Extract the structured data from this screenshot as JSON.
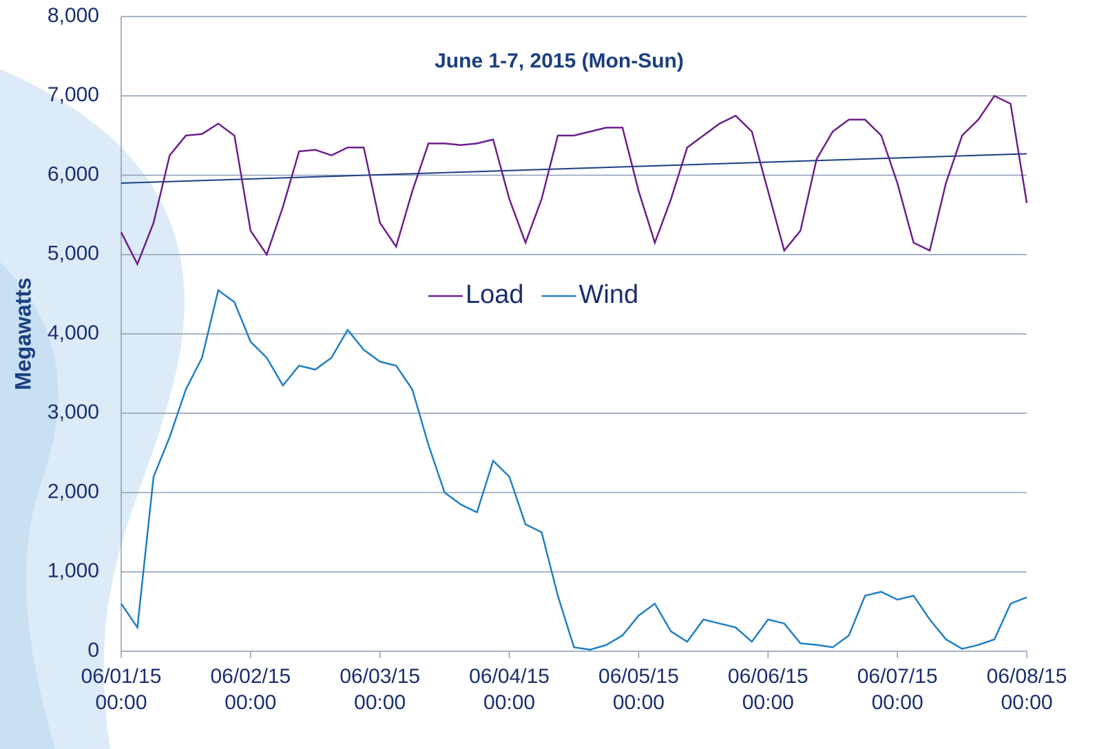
{
  "chart_data": {
    "type": "line",
    "title": "June 1-7, 2015 (Mon-Sun)",
    "y_label": "Megawatts",
    "x": [
      "06/01/15 00:00",
      "06/01/15 03:00",
      "06/01/15 06:00",
      "06/01/15 09:00",
      "06/01/15 12:00",
      "06/01/15 15:00",
      "06/01/15 18:00",
      "06/01/15 21:00",
      "06/02/15 00:00",
      "06/02/15 03:00",
      "06/02/15 06:00",
      "06/02/15 09:00",
      "06/02/15 12:00",
      "06/02/15 15:00",
      "06/02/15 18:00",
      "06/02/15 21:00",
      "06/03/15 00:00",
      "06/03/15 03:00",
      "06/03/15 06:00",
      "06/03/15 09:00",
      "06/03/15 12:00",
      "06/03/15 15:00",
      "06/03/15 18:00",
      "06/03/15 21:00",
      "06/04/15 00:00",
      "06/04/15 03:00",
      "06/04/15 06:00",
      "06/04/15 09:00",
      "06/04/15 12:00",
      "06/04/15 15:00",
      "06/04/15 18:00",
      "06/04/15 21:00",
      "06/05/15 00:00",
      "06/05/15 03:00",
      "06/05/15 06:00",
      "06/05/15 09:00",
      "06/05/15 12:00",
      "06/05/15 15:00",
      "06/05/15 18:00",
      "06/05/15 21:00",
      "06/06/15 00:00",
      "06/06/15 03:00",
      "06/06/15 06:00",
      "06/06/15 09:00",
      "06/06/15 12:00",
      "06/06/15 15:00",
      "06/06/15 18:00",
      "06/06/15 21:00",
      "06/07/15 00:00",
      "06/07/15 03:00",
      "06/07/15 06:00",
      "06/07/15 09:00",
      "06/07/15 12:00",
      "06/07/15 15:00",
      "06/07/15 18:00",
      "06/07/15 21:00",
      "06/08/15 00:00"
    ],
    "series": [
      {
        "name": "Load",
        "color": "#6b1f8c",
        "values": [
          5280,
          4880,
          5400,
          6250,
          6500,
          6520,
          6650,
          6500,
          5300,
          5000,
          5600,
          6300,
          6320,
          6250,
          6350,
          6350,
          5400,
          5100,
          5800,
          6400,
          6400,
          6380,
          6400,
          6450,
          5700,
          5150,
          5700,
          6500,
          6500,
          6550,
          6600,
          6600,
          5800,
          5150,
          5700,
          6350,
          6500,
          6650,
          6750,
          6550,
          5800,
          5050,
          5300,
          6200,
          6550,
          6700,
          6700,
          6500,
          5900,
          5150,
          5050,
          5900,
          6500,
          6700,
          7000,
          6900,
          5650
        ]
      },
      {
        "name": "Wind",
        "color": "#1f7fc4",
        "values": [
          600,
          300,
          2200,
          2700,
          3300,
          3700,
          4550,
          4400,
          3900,
          3700,
          3350,
          3600,
          3550,
          3700,
          4050,
          3800,
          3650,
          3600,
          3300,
          2600,
          2000,
          1850,
          1750,
          2400,
          2200,
          1600,
          1500,
          700,
          50,
          20,
          80,
          200,
          450,
          600,
          250,
          120,
          400,
          350,
          300,
          120,
          400,
          350,
          100,
          80,
          50,
          200,
          700,
          750,
          650,
          700,
          400,
          150,
          30,
          80,
          150,
          600,
          680
        ]
      }
    ],
    "trendline": {
      "series": "Load",
      "color": "#1b3f80",
      "values": [
        5900,
        6270
      ]
    },
    "ylim": [
      0,
      8000
    ],
    "yticks": [
      0,
      {
        "value": 1000,
        "label": "1,000"
      },
      {
        "value": 2000,
        "label": "2,000"
      },
      {
        "value": 3000,
        "label": "3,000"
      },
      {
        "value": 4000,
        "label": "4,000"
      },
      {
        "value": 5000,
        "label": "5,000"
      },
      {
        "value": 6000,
        "label": "6,000"
      },
      {
        "value": 7000,
        "label": "7,000"
      },
      {
        "value": 8000,
        "label": "8,000"
      }
    ],
    "xticks": [
      "06/01/15 00:00",
      "06/02/15 00:00",
      "06/03/15 00:00",
      "06/04/15 00:00",
      "06/05/15 00:00",
      "06/06/15 00:00",
      "06/07/15 00:00",
      "06/08/15 00:00"
    ],
    "grid": true
  }
}
